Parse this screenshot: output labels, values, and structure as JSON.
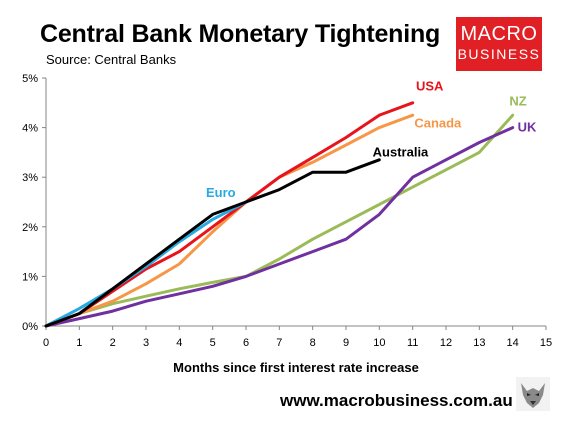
{
  "header": {
    "title": "Central Bank Monetary Tightening",
    "subtitle": "Source: Central Banks"
  },
  "logo": {
    "line1": "MACRO",
    "line2": "BUSINESS"
  },
  "footer": {
    "url": "www.macrobusiness.com.au"
  },
  "chart_data": {
    "type": "line",
    "xlabel": "Months since first interest rate increase",
    "ylabel": "",
    "xlim": [
      0,
      15
    ],
    "ylim": [
      0,
      5
    ],
    "x_ticks": [
      "0",
      "1",
      "2",
      "3",
      "4",
      "5",
      "6",
      "7",
      "8",
      "9",
      "10",
      "11",
      "12",
      "13",
      "14",
      "15"
    ],
    "y_ticks": [
      "0%",
      "1%",
      "2%",
      "3%",
      "4%",
      "5%"
    ],
    "grid": false,
    "series": [
      {
        "name": "USA",
        "color": "#e8141b",
        "points": [
          [
            0,
            0
          ],
          [
            1,
            0.25
          ],
          [
            2,
            0.7
          ],
          [
            3,
            1.15
          ],
          [
            4,
            1.5
          ],
          [
            5,
            2.0
          ],
          [
            6,
            2.5
          ],
          [
            7,
            3.0
          ],
          [
            8,
            3.4
          ],
          [
            9,
            3.8
          ],
          [
            10,
            4.25
          ],
          [
            11,
            4.5
          ]
        ]
      },
      {
        "name": "Canada",
        "color": "#f79646",
        "points": [
          [
            0,
            0
          ],
          [
            1,
            0.25
          ],
          [
            2,
            0.5
          ],
          [
            3,
            0.85
          ],
          [
            4,
            1.25
          ],
          [
            5,
            1.9
          ],
          [
            6,
            2.5
          ],
          [
            7,
            3.0
          ],
          [
            8,
            3.3
          ],
          [
            9,
            3.65
          ],
          [
            10,
            4.0
          ],
          [
            11,
            4.25
          ]
        ]
      },
      {
        "name": "Australia",
        "color": "#000000",
        "points": [
          [
            0,
            0
          ],
          [
            1,
            0.25
          ],
          [
            2,
            0.75
          ],
          [
            3,
            1.25
          ],
          [
            4,
            1.75
          ],
          [
            5,
            2.25
          ],
          [
            6,
            2.5
          ],
          [
            7,
            2.75
          ],
          [
            8,
            3.1
          ],
          [
            9,
            3.1
          ],
          [
            10,
            3.35
          ]
        ]
      },
      {
        "name": "Euro",
        "color": "#27aae1",
        "points": [
          [
            0,
            0
          ],
          [
            1,
            0.35
          ],
          [
            2,
            0.75
          ],
          [
            3,
            1.2
          ],
          [
            4,
            1.7
          ],
          [
            5,
            2.15
          ],
          [
            6,
            2.5
          ]
        ]
      },
      {
        "name": "NZ",
        "color": "#9bbb59",
        "points": [
          [
            0,
            0
          ],
          [
            1,
            0.25
          ],
          [
            2,
            0.45
          ],
          [
            3,
            0.6
          ],
          [
            4,
            0.75
          ],
          [
            5,
            0.88
          ],
          [
            6,
            1.0
          ],
          [
            7,
            1.35
          ],
          [
            8,
            1.75
          ],
          [
            9,
            2.1
          ],
          [
            10,
            2.45
          ],
          [
            11,
            2.8
          ],
          [
            12,
            3.15
          ],
          [
            13,
            3.5
          ],
          [
            14,
            4.25
          ]
        ]
      },
      {
        "name": "UK",
        "color": "#7030a0",
        "points": [
          [
            0,
            0
          ],
          [
            1,
            0.15
          ],
          [
            2,
            0.3
          ],
          [
            3,
            0.5
          ],
          [
            4,
            0.65
          ],
          [
            5,
            0.8
          ],
          [
            6,
            1.0
          ],
          [
            7,
            1.25
          ],
          [
            8,
            1.5
          ],
          [
            9,
            1.75
          ],
          [
            10,
            2.25
          ],
          [
            11,
            3.0
          ],
          [
            12,
            3.35
          ],
          [
            13,
            3.7
          ],
          [
            14,
            4.0
          ]
        ]
      }
    ],
    "labels": [
      {
        "text": "USA",
        "color": "#e8141b",
        "x": 11.1,
        "y": 4.75
      },
      {
        "text": "Canada",
        "color": "#f79646",
        "x": 11.05,
        "y": 4.0
      },
      {
        "text": "Australia",
        "color": "#000000",
        "x": 9.8,
        "y": 3.42
      },
      {
        "text": "Euro",
        "color": "#27aae1",
        "x": 4.8,
        "y": 2.6
      },
      {
        "text": "NZ",
        "color": "#9bbb59",
        "x": 13.9,
        "y": 4.45
      },
      {
        "text": "UK",
        "color": "#7030a0",
        "x": 14.15,
        "y": 3.92
      }
    ]
  }
}
